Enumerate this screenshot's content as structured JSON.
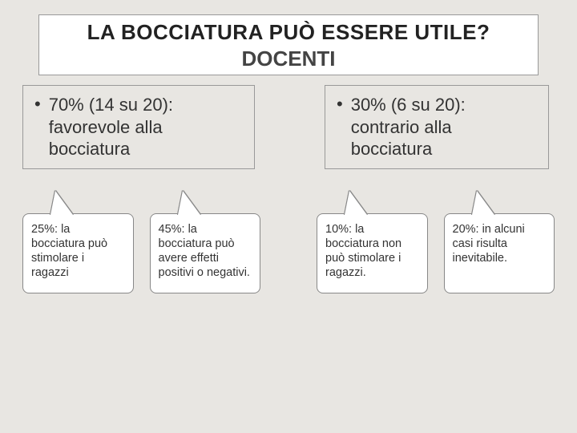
{
  "title": {
    "line1": "LA BOCCIATURA PUÒ ESSERE UTILE?",
    "line2": "DOCENTI"
  },
  "colors": {
    "background": "#e8e6e2",
    "box_border": "#999999",
    "callout_bg": "#ffffff",
    "text": "#333333"
  },
  "typography": {
    "title_fontsize": 26,
    "main_fontsize": 22,
    "callout_fontsize": 14.5
  },
  "left": {
    "main": "70% (14 su 20): favorevole alla bocciatura",
    "callouts": [
      "25%: la bocciatura può stimolare i ragazzi",
      "45%: la bocciatura può avere effetti positivi o negativi."
    ]
  },
  "right": {
    "main": "30% (6 su 20): contrario alla bocciatura",
    "callouts": [
      "10%: la bocciatura non può stimolare i ragazzi.",
      "20%: in alcuni casi risulta inevitabile."
    ]
  }
}
